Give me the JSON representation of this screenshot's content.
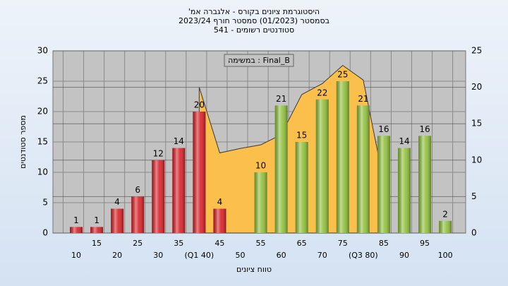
{
  "chart_data": {
    "type": "bar",
    "title": "היסטוגרמת ציונים בקורס - אלגברה אמ'",
    "subtitle": "בסמסטר  (01/2023)  סמסטר חורף 2023/24",
    "subtitle2": "סטודנטים רשומים - 541",
    "annotation": "במשימה : Final_B",
    "x_label": "טווח ציונים",
    "y_label": "מספר סטודנטים",
    "categories": [
      "10",
      "15",
      "20",
      "25",
      "30",
      "35",
      "(Q1 40)",
      "45",
      "50",
      "55",
      "60",
      "65",
      "70",
      "75",
      "(Q3 80)",
      "85",
      "90",
      "95",
      "100"
    ],
    "values": [
      1,
      1,
      4,
      6,
      12,
      14,
      20,
      4,
      null,
      10,
      21,
      15,
      22,
      25,
      21,
      16,
      14,
      16,
      2
    ],
    "colors": [
      "#d81f26",
      "#d81f26",
      "#d81f26",
      "#d81f26",
      "#d81f26",
      "#d81f26",
      "#d81f26",
      "#d81f26",
      "#d81f26",
      "#8fbf3a",
      "#8fbf3a",
      "#8fbf3a",
      "#8fbf3a",
      "#8fbf3a",
      "#8fbf3a",
      "#8fbf3a",
      "#8fbf3a",
      "#8fbf3a",
      "#8fbf3a"
    ],
    "area": {
      "axis": "y2",
      "color": "#fbbf4c",
      "values": [
        null,
        null,
        null,
        null,
        null,
        null,
        20,
        11,
        11.6,
        12.1,
        13.5,
        19,
        20.5,
        23,
        21,
        7,
        null,
        null,
        null
      ]
    },
    "ylim": [
      0,
      30
    ],
    "yticks": [
      0,
      5,
      10,
      15,
      20,
      25,
      30
    ],
    "y2lim": [
      0,
      25
    ],
    "y2ticks": [
      0,
      5,
      10,
      15,
      20,
      25
    ],
    "grid": true
  }
}
